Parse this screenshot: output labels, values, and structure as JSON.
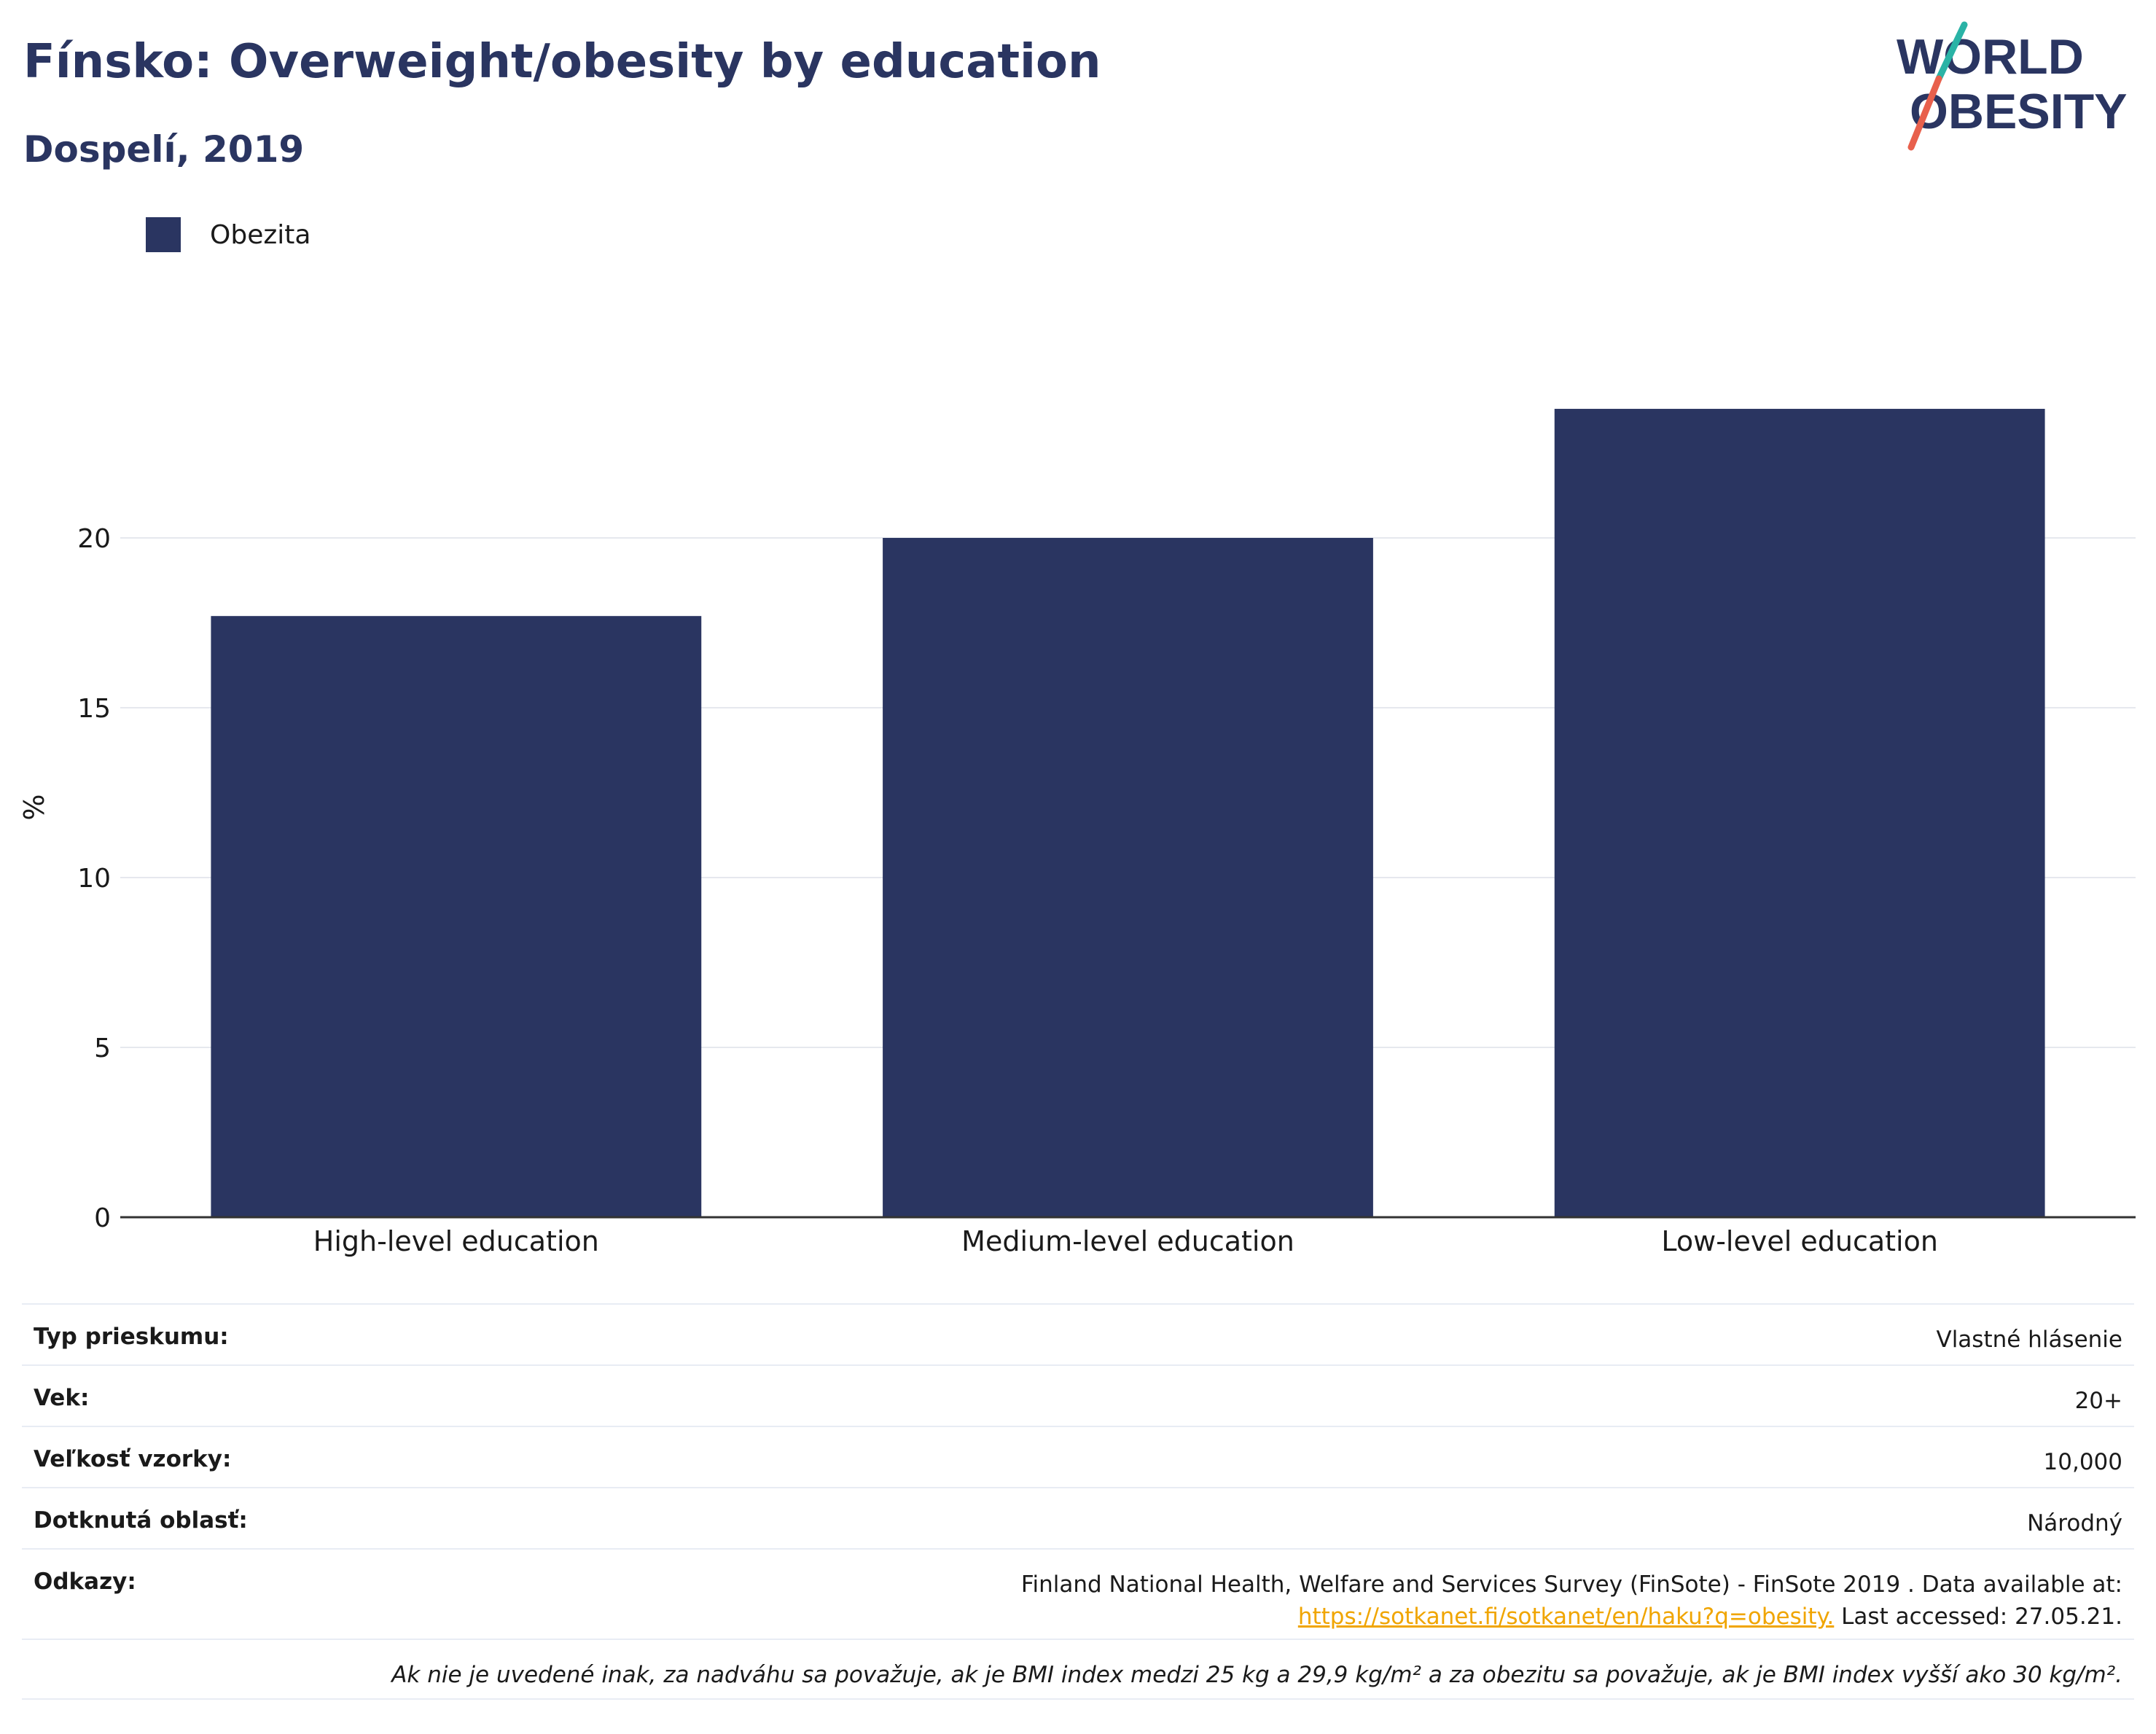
{
  "title": "Fínsko: Overweight/obesity by education",
  "subtitle": "Dospelí, 2019",
  "logo": {
    "line1": "WORLD",
    "line2": "OBESITY",
    "text_color": "#2a3561",
    "slash_colors": [
      "#2ab3a6",
      "#e8604c"
    ]
  },
  "legend": {
    "label": "Obezita",
    "color": "#2a3561"
  },
  "chart_data": {
    "type": "bar",
    "categories": [
      "High-level education",
      "Medium-level education",
      "Low-level education"
    ],
    "series": [
      {
        "name": "Obezita",
        "values": [
          17.7,
          20.0,
          23.8
        ]
      }
    ],
    "ylabel": "%",
    "ylim": [
      0,
      26
    ],
    "yticks": [
      0,
      5,
      10,
      15,
      20
    ],
    "grid": true,
    "legend_position": "top-left",
    "bar_color": "#2a3561"
  },
  "info": {
    "survey_type_label": "Typ prieskumu:",
    "survey_type_value": "Vlastné hlásenie",
    "age_label": "Vek:",
    "age_value": "20+",
    "sample_label": "Veľkosť vzorky:",
    "sample_value": "10,000",
    "area_label": "Dotknutá oblasť:",
    "area_value": "Národný",
    "refs_label": "Odkazy:",
    "refs_text1": "Finland National Health, Welfare and Services Survey (FinSote) - FinSote 2019 . Data available at:",
    "refs_link": "https://sotkanet.fi/sotkanet/en/haku?q=obesity.",
    "refs_text2": " Last accessed: 27.05.21.",
    "note": "Ak nie je uvedené inak, za nadváhu sa považuje, ak je BMI index medzi 25 kg a 29,9 kg/m² a za obezitu sa považuje, ak je BMI index vyšší ako 30 kg/m²."
  }
}
